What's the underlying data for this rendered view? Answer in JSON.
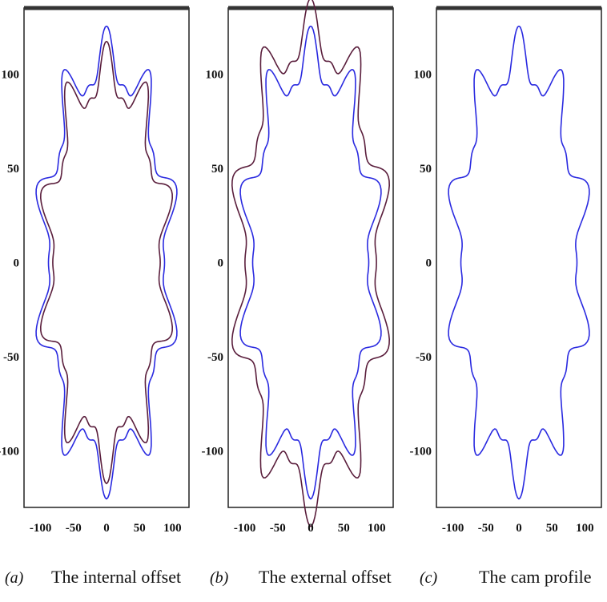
{
  "colors": {
    "blue_curve": "#2a2ae0",
    "purple_curve": "#5a1e3c",
    "frame": "#222222"
  },
  "chart_data": [
    {
      "type": "line",
      "panel_letter": "(a)",
      "caption": "The internal offset",
      "xlim": [
        -125,
        125
      ],
      "ylim": [
        -130,
        135
      ],
      "xticks": [
        -100,
        -50,
        0,
        50,
        100
      ],
      "xtick_labels": [
        "-100",
        "-50",
        "0",
        "50",
        "100"
      ],
      "yticks": [
        100,
        50,
        0,
        -50,
        -100
      ],
      "ytick_labels": [
        "100",
        "50",
        "0",
        "-50",
        "-100"
      ],
      "grid": false,
      "series": [
        {
          "color": "#2a2ae0",
          "variant": "cam",
          "scale": 1.0
        },
        {
          "color": "#5a1e3c",
          "variant": "internal",
          "scale": 0.97
        }
      ]
    },
    {
      "type": "line",
      "panel_letter": "(b)",
      "caption": "The external offset",
      "xlim": [
        -125,
        125
      ],
      "ylim": [
        -130,
        135
      ],
      "xticks": [
        -100,
        -50,
        0,
        50,
        100
      ],
      "xtick_labels": [
        "-100",
        "-50",
        "0",
        "50",
        "100"
      ],
      "yticks": [
        100,
        50,
        0,
        -50,
        -100
      ],
      "ytick_labels": [
        "100",
        "50",
        "0",
        "-50",
        "-100"
      ],
      "grid": false,
      "series": [
        {
          "color": "#2a2ae0",
          "variant": "cam",
          "scale": 1.0
        },
        {
          "color": "#5a1e3c",
          "variant": "external",
          "scale": 1.06
        }
      ]
    },
    {
      "type": "line",
      "panel_letter": "(c)",
      "caption": "The cam profile",
      "xlim": [
        -125,
        125
      ],
      "ylim": [
        -130,
        135
      ],
      "xticks": [
        -100,
        -50,
        0,
        50,
        100
      ],
      "xtick_labels": [
        "-100",
        "-50",
        "0",
        "50",
        "100"
      ],
      "yticks": [
        100,
        50,
        0,
        -50,
        -100
      ],
      "ytick_labels": [
        "100",
        "50",
        "0",
        "-50",
        "-100"
      ],
      "grid": false,
      "series": [
        {
          "color": "#2a2ae0",
          "variant": "cam",
          "scale": 1.0
        }
      ]
    }
  ]
}
